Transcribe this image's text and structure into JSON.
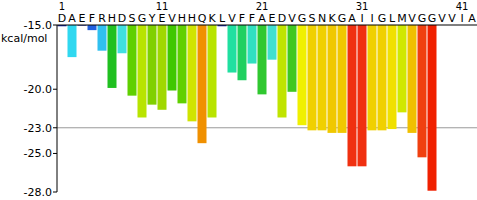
{
  "chart_data": {
    "type": "bar",
    "y_label": "kcal/mol",
    "categories": [
      "D",
      "A",
      "E",
      "F",
      "R",
      "H",
      "D",
      "S",
      "G",
      "Y",
      "E",
      "V",
      "H",
      "H",
      "Q",
      "K",
      "L",
      "V",
      "F",
      "F",
      "A",
      "E",
      "D",
      "V",
      "G",
      "S",
      "N",
      "K",
      "G",
      "A",
      "I",
      "I",
      "G",
      "L",
      "M",
      "V",
      "G",
      "G",
      "V",
      "V",
      "I",
      "A"
    ],
    "values": [
      -15.1,
      -17.5,
      -15.05,
      -15.4,
      -17.0,
      -19.9,
      -17.2,
      -20.5,
      -22.2,
      -21.2,
      -21.6,
      -20.1,
      -21.1,
      -22.5,
      -24.2,
      -22.2,
      -15.1,
      -18.7,
      -19.3,
      -18.0,
      -20.4,
      -17.7,
      -22.2,
      -20.2,
      -22.8,
      -23.2,
      -23.2,
      -23.4,
      -23.4,
      -26.0,
      -26.0,
      -23.2,
      -23.2,
      -23.1,
      -21.8,
      -23.4,
      -25.3,
      -27.9,
      null,
      null,
      null,
      null
    ],
    "colors": [
      "#1a2fb0",
      "#30d8f0",
      "#1a2fb0",
      "#2060e0",
      "#30c0f0",
      "#20c020",
      "#40e0e0",
      "#60d000",
      "#b8e400",
      "#80d000",
      "#a0d800",
      "#40c800",
      "#60d000",
      "#d0e400",
      "#f09000",
      "#b8e400",
      "#1a2fb0",
      "#20e0a0",
      "#20d060",
      "#30e0c0",
      "#30c830",
      "#40e0d0",
      "#c0e400",
      "#40c820",
      "#f0f000",
      "#f0d000",
      "#f0d000",
      "#f0c800",
      "#f0c800",
      "#f03010",
      "#f03010",
      "#f0d000",
      "#f0d000",
      "#f0e000",
      "#d0e800",
      "#f0c000",
      "#f04010",
      "#f02000",
      null,
      null,
      null,
      null
    ],
    "xticks": [
      1,
      11,
      21,
      31,
      41
    ],
    "ylim": [
      -28,
      -15
    ],
    "yticks": [
      {
        "value": -15,
        "label": "-15.0"
      },
      {
        "value": -20,
        "label": "-20.0"
      },
      {
        "value": -23,
        "label": "-23.0"
      },
      {
        "value": -25,
        "label": "-25.0"
      },
      {
        "value": -28,
        "label": "-28.0"
      }
    ],
    "reference_line": -23,
    "grid": false
  }
}
